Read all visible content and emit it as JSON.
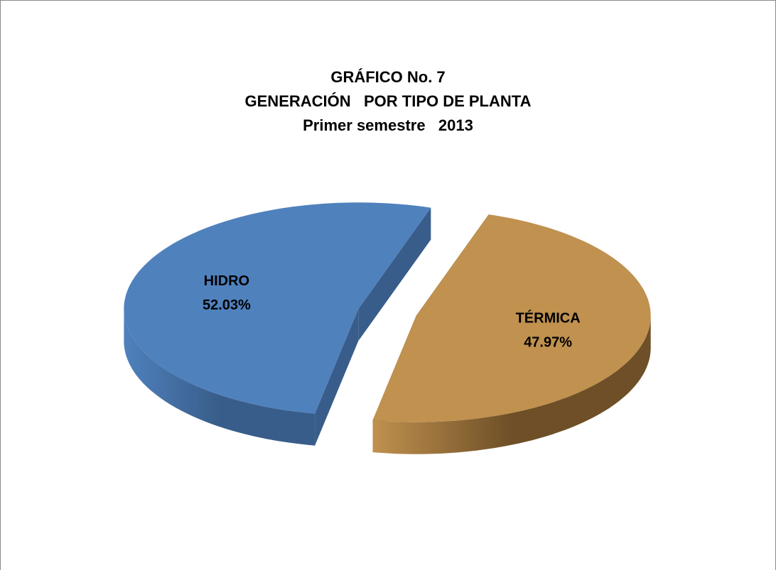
{
  "chart_data": {
    "type": "pie",
    "title": [
      "GRÁFICO No. 7",
      "GENERACIÓN   POR TIPO DE PLANTA",
      "Primer semestre   2013"
    ],
    "categories": [
      "HIDRO",
      "TÉRMICA"
    ],
    "values": [
      52.03,
      47.97
    ],
    "value_labels": [
      "52.03%",
      "47.97%"
    ],
    "colors": [
      "#4f81bd",
      "#c0914f"
    ],
    "side_colors": [
      "#385d8a",
      "#6e4f27"
    ]
  }
}
